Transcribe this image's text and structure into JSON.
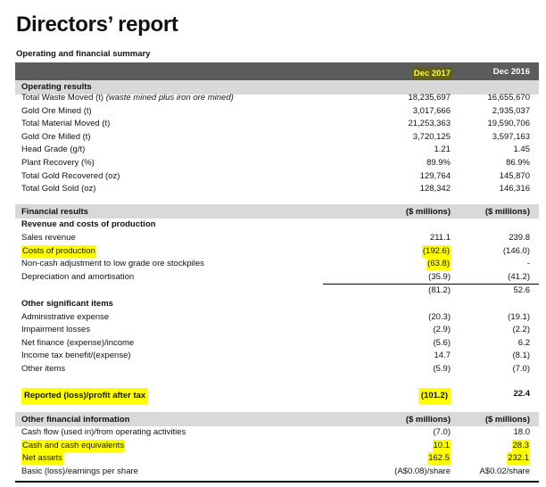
{
  "title": "Directors’ report",
  "subtitle": "Operating and financial summary",
  "columns": [
    "Dec 2017",
    "Dec 2016"
  ],
  "operating": {
    "heading": "Operating results",
    "rows": [
      {
        "label": "Total Waste Moved (t) ",
        "note": "(waste mined plus iron ore mined)",
        "v1": "18,235,697",
        "v2": "16,655,670"
      },
      {
        "label": "Gold Ore Mined (t)",
        "v1": "3,017,666",
        "v2": "2,935,037"
      },
      {
        "label": "Total Material Moved (t)",
        "v1": "21,253,363",
        "v2": "19,590,706"
      },
      {
        "label": "Gold Ore Milled (t)",
        "v1": "3,720,125",
        "v2": "3,597,163"
      },
      {
        "label": "Head Grade (g/t)",
        "v1": "1.21",
        "v2": "1.45"
      },
      {
        "label": "Plant Recovery (%)",
        "v1": "89.9%",
        "v2": "86.9%"
      },
      {
        "label": "Total Gold Recovered (oz)",
        "v1": "129,764",
        "v2": "145,870"
      },
      {
        "label": "Total Gold Sold (oz)",
        "v1": "128,342",
        "v2": "146,316"
      }
    ]
  },
  "financial": {
    "heading": "Financial results",
    "unit1": "($ millions)",
    "unit2": "($ millions)",
    "revenue_heading": "Revenue and costs of production",
    "rows": [
      {
        "label": "Sales revenue",
        "v1": "211.1",
        "v2": "239.8"
      },
      {
        "label": "Costs of production",
        "v1": "(192.6)",
        "v2": "(146.0)"
      },
      {
        "label": "Non-cash adjustment to low grade ore stockpiles",
        "v1": "(63.8)",
        "v2": "-"
      },
      {
        "label": "Depreciation and amortisation",
        "v1": "(35.9)",
        "v2": "(41.2)"
      }
    ],
    "subtotal": {
      "v1": "(81.2)",
      "v2": "52.6"
    },
    "other_heading": "Other significant items",
    "other_rows": [
      {
        "label": "Administrative expense",
        "v1": "(20.3)",
        "v2": "(19.1)"
      },
      {
        "label": "Impairment losses",
        "v1": "(2.9)",
        "v2": "(2.2)"
      },
      {
        "label": "Net finance (expense)/income",
        "v1": "(5.6)",
        "v2": "6.2"
      },
      {
        "label": "Income tax benefit/(expense)",
        "v1": "14.7",
        "v2": "(8.1)"
      },
      {
        "label": "Other items",
        "v1": "(5.9)",
        "v2": "(7.0)"
      }
    ],
    "reported": {
      "label": "Reported (loss)/profit after tax",
      "v1": "(101.2)",
      "v2": "22.4"
    }
  },
  "other_info": {
    "heading": "Other financial information",
    "unit1": "($ millions)",
    "unit2": "($ millions)",
    "rows": [
      {
        "label": "Cash flow (used in)/from operating activities",
        "v1": "(7.0)",
        "v2": "18.0"
      },
      {
        "label": "Cash and cash equivalents",
        "v1": "10.1",
        "v2": "28.3"
      },
      {
        "label": "Net assets",
        "v1": "162.5",
        "v2": "232.1"
      },
      {
        "label": "Basic (loss)/earnings per share",
        "v1": "(A$0.08)/share",
        "v2": "A$0.02/share"
      }
    ]
  },
  "colors": {
    "highlight": "#ffff00",
    "header_bg": "#5c5c5c",
    "band_bg": "#d9d9d9"
  }
}
